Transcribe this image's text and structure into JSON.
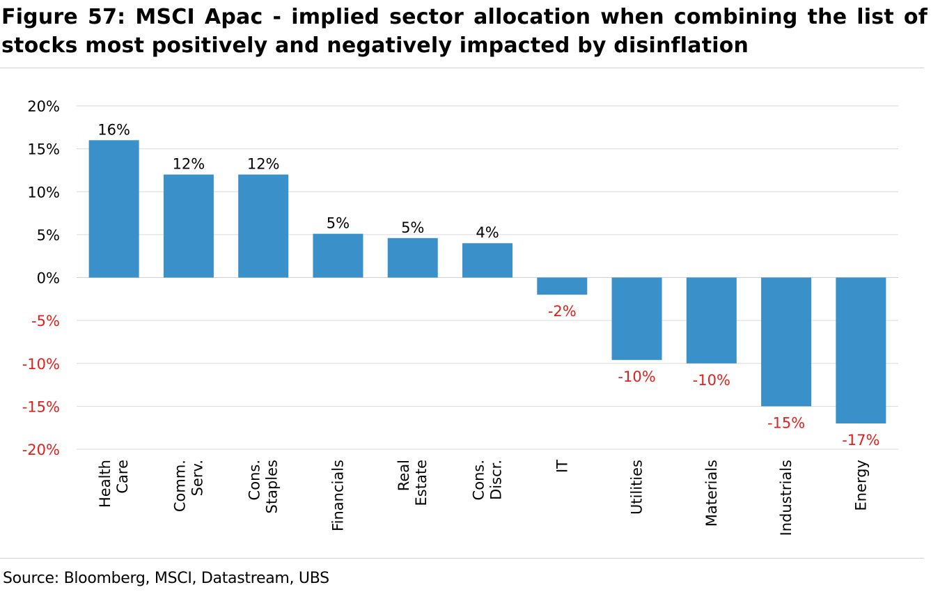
{
  "title": "Figure 57: MSCI Apac - implied sector allocation when combining the list of stocks most positively and negatively impacted by disinflation",
  "source": "Source: Bloomberg, MSCI, Datastream, UBS",
  "chart_data": {
    "type": "bar",
    "categories": [
      [
        "Health",
        "Care"
      ],
      [
        "Comm.",
        "Serv."
      ],
      [
        "Cons.",
        "Staples"
      ],
      [
        "Financials"
      ],
      [
        "Real",
        "Estate"
      ],
      [
        "Cons.",
        "Discr."
      ],
      [
        "IT"
      ],
      [
        "Utilities"
      ],
      [
        "Materials"
      ],
      [
        "Industrials"
      ],
      [
        "Energy"
      ]
    ],
    "values": [
      16,
      12,
      12,
      5.1,
      4.6,
      4,
      -2,
      -9.6,
      -10,
      -15,
      -17
    ],
    "data_labels": [
      "16%",
      "12%",
      "12%",
      "5%",
      "5%",
      "4%",
      "-2%",
      "-10%",
      "-10%",
      "-15%",
      "-17%"
    ],
    "yticks": [
      20,
      15,
      10,
      5,
      0,
      -5,
      -10,
      -15,
      -20
    ],
    "ytick_labels": [
      "20%",
      "15%",
      "10%",
      "5%",
      "0%",
      "-5%",
      "-10%",
      "-15%",
      "-20%"
    ],
    "ylim": [
      -20,
      20
    ],
    "grid": true,
    "colors": {
      "bar": "#3a91c9",
      "positive_text": "#000000",
      "negative_text": "#e0201b",
      "grid": "#d9d9d9"
    }
  }
}
